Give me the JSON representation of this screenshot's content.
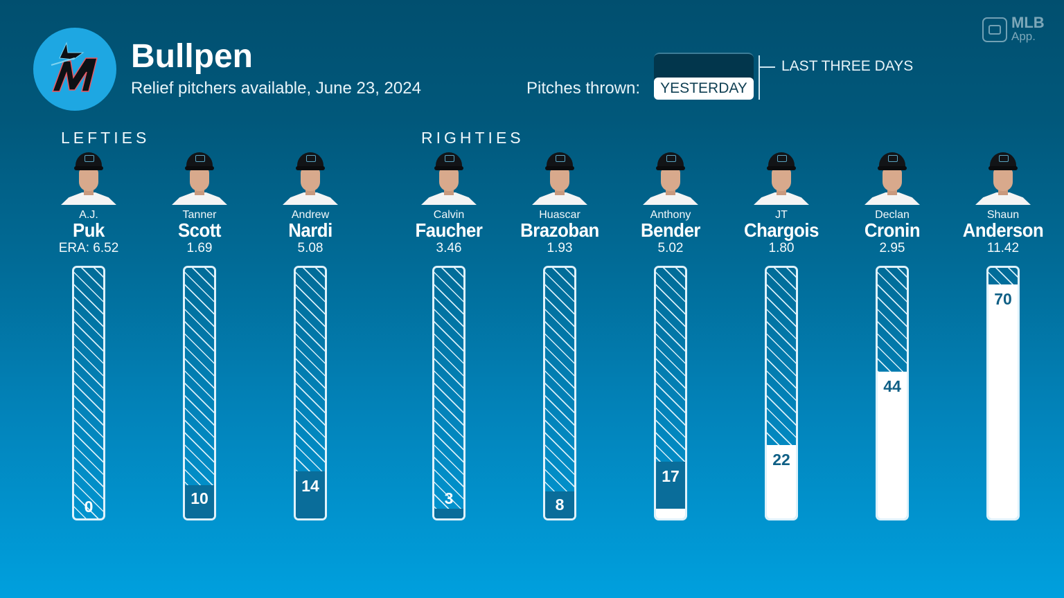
{
  "header": {
    "title": "Bullpen",
    "subtitle": "Relief pitchers available, June 23, 2024",
    "logo": "marlins-logo",
    "brand": {
      "name": "MLB",
      "suffix": "App."
    }
  },
  "toggle": {
    "label": "Pitches thrown:",
    "options": [
      "YESTERDAY",
      "LAST THREE DAYS"
    ],
    "selected": "YESTERDAY"
  },
  "sections": {
    "lefties": "LEFTIES",
    "righties": "RIGHTIES"
  },
  "colors": {
    "background_top": "#014f6f",
    "background_bottom": "#00a0de",
    "logo_circle": "#1ea7e2",
    "yesterday_fill": "#0a6d9a",
    "earlier_fill": "#ffffff",
    "hatch": "#d7eef8"
  },
  "scale": {
    "max_pitches": 75
  },
  "players": [
    {
      "first": "A.J.",
      "last": "Puk",
      "era": "ERA: 6.52",
      "hand": "L",
      "pitches": 0,
      "yesterday": 0,
      "earlier": 0,
      "label": "0"
    },
    {
      "first": "Tanner",
      "last": "Scott",
      "era": "1.69",
      "hand": "L",
      "pitches": 10,
      "yesterday": 10,
      "earlier": 0,
      "label": "10"
    },
    {
      "first": "Andrew",
      "last": "Nardi",
      "era": "5.08",
      "hand": "L",
      "pitches": 14,
      "yesterday": 14,
      "earlier": 0,
      "label": "14"
    },
    {
      "first": "Calvin",
      "last": "Faucher",
      "era": "3.46",
      "hand": "R",
      "pitches": 3,
      "yesterday": 3,
      "earlier": 0,
      "label": "3"
    },
    {
      "first": "Huascar",
      "last": "Brazoban",
      "era": "1.93",
      "hand": "R",
      "pitches": 8,
      "yesterday": 8,
      "earlier": 0,
      "label": "8"
    },
    {
      "first": "Anthony",
      "last": "Bender",
      "era": "5.02",
      "hand": "R",
      "pitches": 17,
      "yesterday": 14,
      "earlier": 3,
      "label": "17"
    },
    {
      "first": "JT",
      "last": "Chargois",
      "era": "1.80",
      "hand": "R",
      "pitches": 22,
      "yesterday": 0,
      "earlier": 22,
      "label": "22"
    },
    {
      "first": "Declan",
      "last": "Cronin",
      "era": "2.95",
      "hand": "R",
      "pitches": 44,
      "yesterday": 0,
      "earlier": 44,
      "label": "44"
    },
    {
      "first": "Shaun",
      "last": "Anderson",
      "era": "11.42",
      "hand": "R",
      "pitches": 70,
      "yesterday": 0,
      "earlier": 70,
      "label": "70"
    }
  ],
  "chart_data": {
    "type": "bar",
    "title": "Bullpen",
    "subtitle": "Relief pitchers available, June 23, 2024",
    "categories": [
      "A.J. Puk",
      "Tanner Scott",
      "Andrew Nardi",
      "Calvin Faucher",
      "Huascar Brazoban",
      "Anthony Bender",
      "JT Chargois",
      "Declan Cronin",
      "Shaun Anderson"
    ],
    "groups": {
      "LEFTIES": [
        "A.J. Puk",
        "Tanner Scott",
        "Andrew Nardi"
      ],
      "RIGHTIES": [
        "Calvin Faucher",
        "Huascar Brazoban",
        "Anthony Bender",
        "JT Chargois",
        "Declan Cronin",
        "Shaun Anderson"
      ]
    },
    "series": [
      {
        "name": "Pitches thrown (last three days, labeled)",
        "values": [
          0,
          10,
          14,
          3,
          8,
          17,
          22,
          44,
          70
        ]
      },
      {
        "name": "Yesterday (dark fill)",
        "values": [
          0,
          10,
          14,
          3,
          8,
          14,
          0,
          0,
          0
        ]
      },
      {
        "name": "Earlier days (white fill)",
        "values": [
          0,
          0,
          0,
          0,
          0,
          3,
          22,
          44,
          70
        ]
      }
    ],
    "era": [
      6.52,
      1.69,
      5.08,
      3.46,
      1.93,
      5.02,
      1.8,
      2.95,
      11.42
    ],
    "xlabel": "",
    "ylabel": "Pitches thrown",
    "ylim": [
      0,
      75
    ],
    "orientation": "vertical, filling from bottom",
    "grid": false,
    "legend": "toggle: YESTERDAY / LAST THREE DAYS"
  }
}
